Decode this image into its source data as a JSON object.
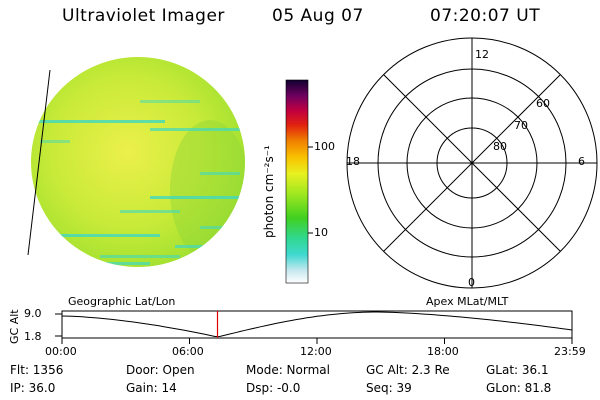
{
  "header": {
    "instrument": "Ultraviolet Imager",
    "date": "05 Aug 07",
    "time": "07:20:07 UT"
  },
  "colorbar": {
    "unit_label": "photon cm⁻²s⁻¹",
    "ticks": [
      "100",
      "10"
    ]
  },
  "polar_plot": {
    "mlt_labels": {
      "top": "12",
      "left": "18",
      "right": "6",
      "bottom": "0"
    },
    "lat_labels": [
      "60",
      "70",
      "80"
    ]
  },
  "orbit": {
    "left_title": "Geographic Lat/Lon",
    "right_title": "Apex MLat/MLT",
    "y_label": "GC Alt",
    "y_ticks": [
      "9.0",
      "1.8"
    ],
    "x_ticks": [
      "00:00",
      "06:00",
      "12:00",
      "18:00",
      "23:59"
    ],
    "current_time_fraction": 0.305
  },
  "footer": {
    "flt": "Flt: 1356",
    "ip": "IP: 36.0",
    "door": "Door: Open",
    "gain": "Gain: 14",
    "mode": "Mode: Normal",
    "dsp": "Dsp:   -0.0",
    "gc_alt": "GC Alt: 2.3 Re",
    "seq": "Seq: 39",
    "glat": "GLat:  36.1",
    "glon": "GLon:  81.8"
  },
  "colors": {
    "disk_base": "#b8e830",
    "disk_bright": "#e0f040",
    "stripe": "#40d8c0",
    "marker": "#e00000"
  }
}
